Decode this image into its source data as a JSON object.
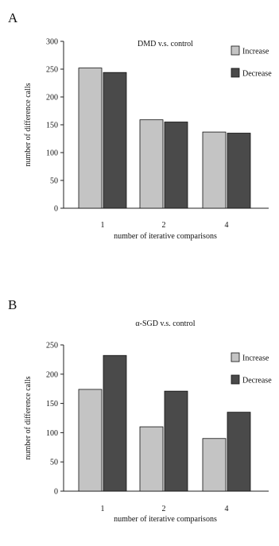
{
  "chart_data": [
    {
      "type": "bar",
      "panel_label": "A",
      "title": "DMD v.s. control",
      "xlabel": "number of iterative comparisons",
      "ylabel": "number of difference calls",
      "categories": [
        "1",
        "2",
        "4"
      ],
      "yticks": [
        0,
        50,
        100,
        150,
        200,
        250,
        300
      ],
      "ylim": [
        0,
        300
      ],
      "legend_position": "top-right",
      "series": [
        {
          "name": "Increase",
          "values": [
            252,
            159,
            137
          ],
          "color": "#c4c4c4"
        },
        {
          "name": "Decrease",
          "values": [
            244,
            155,
            135
          ],
          "color": "#4a4a4a"
        }
      ]
    },
    {
      "type": "bar",
      "panel_label": "B",
      "title": "α-SGD v.s. control",
      "xlabel": "number of iterative comparisons",
      "ylabel": "number of difference calls",
      "categories": [
        "1",
        "2",
        "4"
      ],
      "yticks": [
        0,
        50,
        100,
        150,
        200,
        250
      ],
      "ylim": [
        0,
        250
      ],
      "legend_position": "top-right",
      "series": [
        {
          "name": "Increase",
          "values": [
            174,
            110,
            90
          ],
          "color": "#c4c4c4"
        },
        {
          "name": "Decrease",
          "values": [
            232,
            171,
            135
          ],
          "color": "#4a4a4a"
        }
      ]
    }
  ]
}
